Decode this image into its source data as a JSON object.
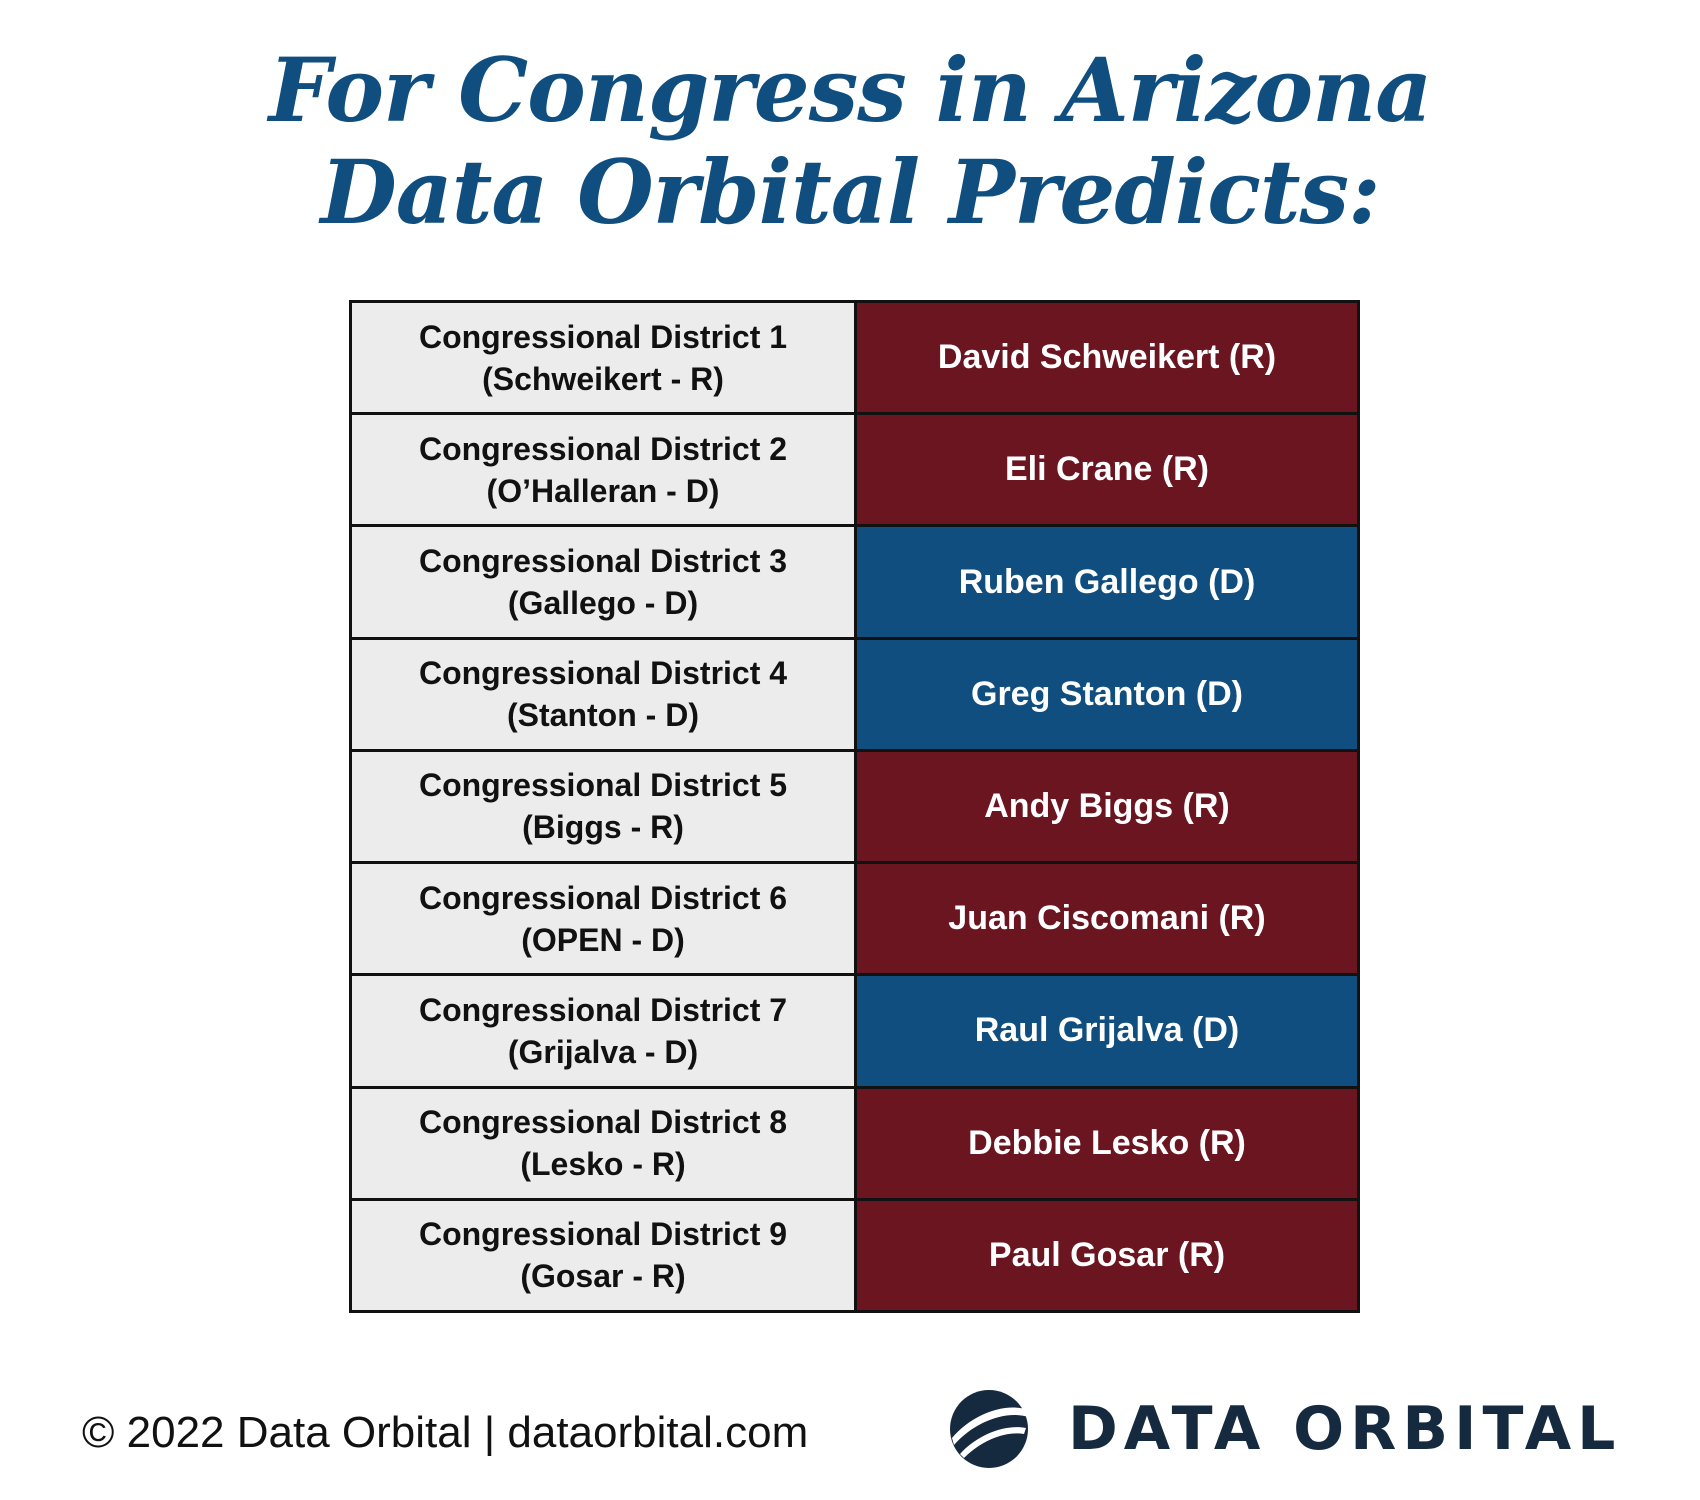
{
  "title": {
    "line1": "For Congress in Arizona",
    "line2": "Data Orbital Predicts:"
  },
  "rows": [
    {
      "district": "Congressional District 1",
      "incumbent": "(Schweikert - R)",
      "winner": "David Schweikert (R)",
      "party": "R"
    },
    {
      "district": "Congressional District 2",
      "incumbent": "(O’Halleran - D)",
      "winner": "Eli Crane (R)",
      "party": "R"
    },
    {
      "district": "Congressional District 3",
      "incumbent": "(Gallego - D)",
      "winner": "Ruben Gallego (D)",
      "party": "D"
    },
    {
      "district": "Congressional District 4",
      "incumbent": "(Stanton - D)",
      "winner": "Greg Stanton (D)",
      "party": "D"
    },
    {
      "district": "Congressional District 5",
      "incumbent": "(Biggs - R)",
      "winner": "Andy Biggs (R)",
      "party": "R"
    },
    {
      "district": "Congressional District 6",
      "incumbent": "(OPEN - D)",
      "winner": "Juan Ciscomani (R)",
      "party": "R"
    },
    {
      "district": "Congressional District 7",
      "incumbent": "(Grijalva - D)",
      "winner": "Raul Grijalva (D)",
      "party": "D"
    },
    {
      "district": "Congressional District 8",
      "incumbent": "(Lesko - R)",
      "winner": "Debbie Lesko (R)",
      "party": "R"
    },
    {
      "district": "Congressional District 9",
      "incumbent": "(Gosar - R)",
      "winner": "Paul Gosar (R)",
      "party": "R"
    }
  ],
  "colors": {
    "title": "#0f4e7f",
    "republican": "#6b1521",
    "democrat": "#0f4e7f",
    "district_cell": "#ececec",
    "logo": "#152a3e"
  },
  "footer": {
    "copyright": "© 2022 Data Orbital | dataorbital.com",
    "logo_text": "DATA ORBITAL",
    "logo_icon": "orbital-sphere-icon"
  }
}
